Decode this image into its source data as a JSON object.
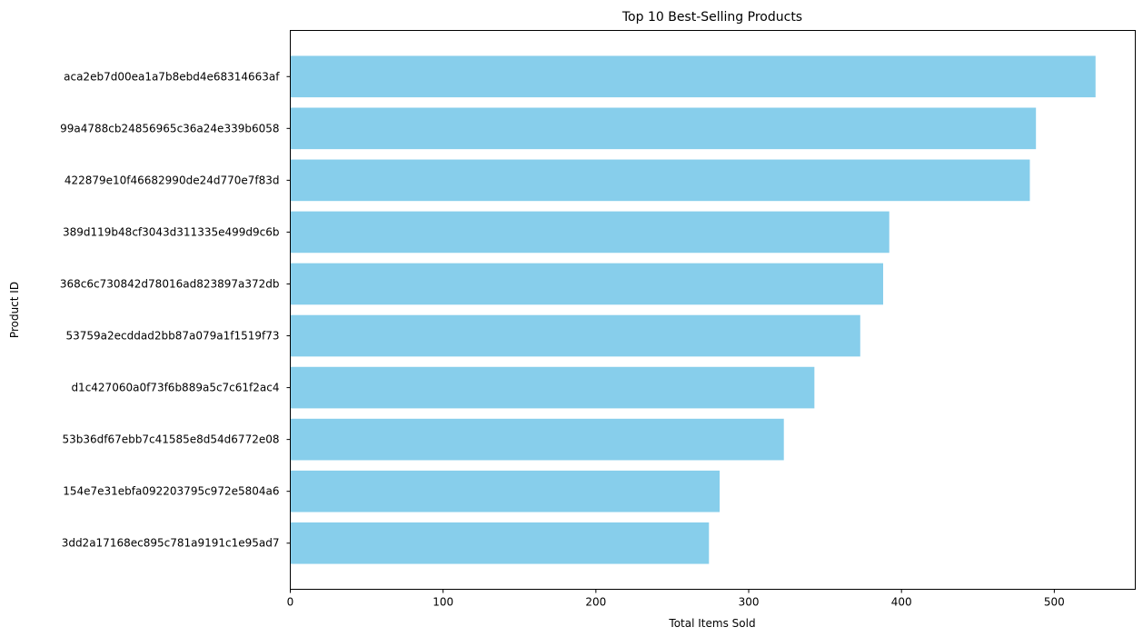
{
  "chart_data": {
    "type": "bar",
    "orientation": "horizontal",
    "title": "Top 10 Best-Selling Products",
    "xlabel": "Total Items Sold",
    "ylabel": "Product ID",
    "categories": [
      "aca2eb7d00ea1a7b8ebd4e68314663af",
      "99a4788cb24856965c36a24e339b6058",
      "422879e10f46682990de24d770e7f83d",
      "389d119b48cf3043d311335e499d9c6b",
      "368c6c730842d78016ad823897a372db",
      "53759a2ecddad2bb87a079a1f1519f73",
      "d1c427060a0f73f6b889a5c7c61f2ac4",
      "53b36df67ebb7c41585e8d54d6772e08",
      "154e7e31ebfa092203795c972e5804a6",
      "3dd2a17168ec895c781a9191c1e95ad7"
    ],
    "values": [
      527,
      488,
      484,
      392,
      388,
      373,
      343,
      323,
      281,
      274
    ],
    "xlim": [
      0,
      553
    ],
    "xticks": [
      0,
      100,
      200,
      300,
      400,
      500
    ],
    "bar_color": "#87ceeb",
    "grid": false,
    "legend": false
  }
}
